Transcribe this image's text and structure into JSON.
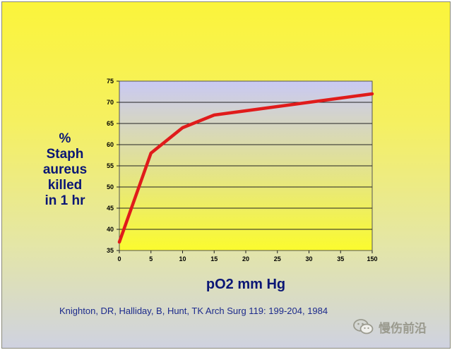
{
  "chart_data": {
    "type": "line",
    "ylabel": "%\nStaph\naureus\nkilled\nin 1 hr",
    "xlabel": "pO2 mm Hg",
    "categories": [
      "0",
      "5",
      "10",
      "15",
      "20",
      "25",
      "30",
      "35",
      "150"
    ],
    "values": [
      37,
      58,
      64,
      67,
      68,
      69,
      70,
      71,
      72
    ],
    "ylim": [
      35,
      75
    ],
    "yticks": [
      35,
      40,
      45,
      50,
      55,
      60,
      65,
      70,
      75
    ],
    "grid": true,
    "line_color": "#e01b1b",
    "plot_background_top": "#c9c9f4",
    "plot_background_bottom": "#fbfb2e"
  },
  "citation": "Knighton, DR, Halliday, B, Hunt, TK Arch Surg 119: 199-204, 1984",
  "watermark": {
    "icon": "wechat-icon",
    "text": "慢伤前沿"
  }
}
